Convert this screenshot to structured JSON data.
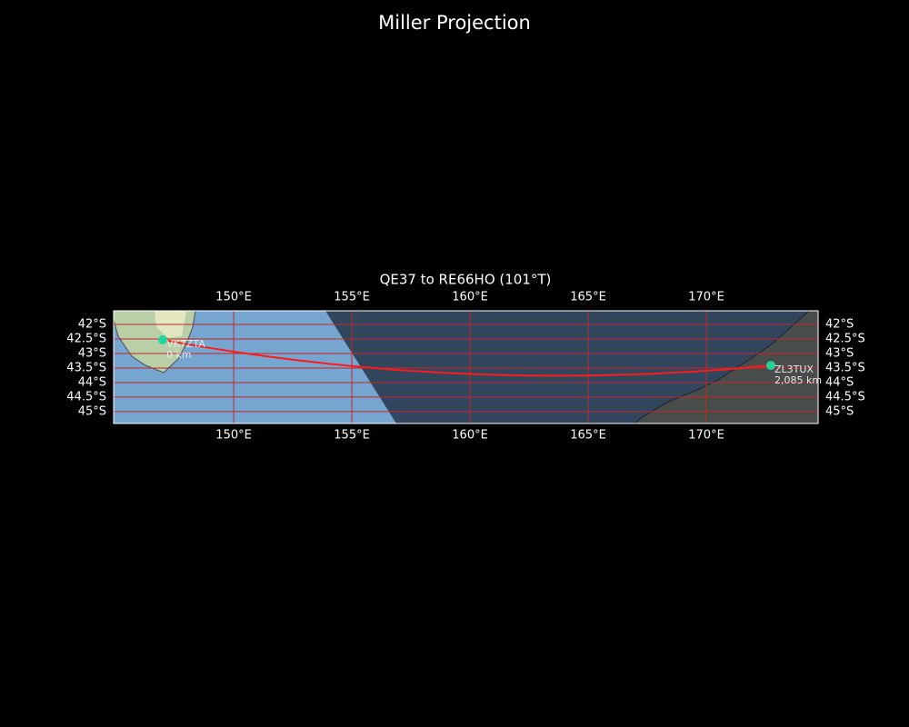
{
  "chart_data": {
    "type": "map",
    "title": "Miller Projection",
    "subtitle": "QE37 to RE66HO (101°T)",
    "xlim": [
      144.92,
      174.73
    ],
    "ylim": [
      -45.41,
      -41.53
    ],
    "xticks": [
      {
        "value": 150,
        "label": "150°E"
      },
      {
        "value": 155,
        "label": "155°E"
      },
      {
        "value": 160,
        "label": "160°E"
      },
      {
        "value": 165,
        "label": "165°E"
      },
      {
        "value": 170,
        "label": "170°E"
      }
    ],
    "yticks": [
      {
        "value": -42,
        "label": "42°S"
      },
      {
        "value": -42.5,
        "label": "42.5°S"
      },
      {
        "value": -43,
        "label": "43°S"
      },
      {
        "value": -43.5,
        "label": "43.5°S"
      },
      {
        "value": -44,
        "label": "44°S"
      },
      {
        "value": -44.5,
        "label": "44.5°S"
      },
      {
        "value": -45,
        "label": "45°S"
      }
    ],
    "grid": true,
    "grid_color": "#c0282a",
    "route_color": "#ff1a1a",
    "marker_color": "#22d39a",
    "stations": [
      {
        "name": "VK7ZTA",
        "label": "0 km",
        "lon": 147.0,
        "lat": -42.53
      },
      {
        "name": "ZL3TUX",
        "label": "2,085 km",
        "lon": 172.73,
        "lat": -43.41
      }
    ]
  }
}
